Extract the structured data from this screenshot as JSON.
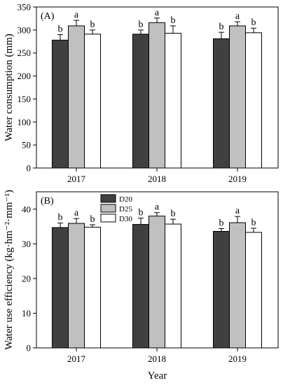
{
  "chart_data": [
    {
      "type": "bar",
      "panel_label": "(A)",
      "categories": [
        "2017",
        "2018",
        "2019"
      ],
      "series": [
        {
          "name": "D20",
          "color": "#404040",
          "values": [
            278,
            291,
            281
          ],
          "errors": [
            12,
            9,
            14
          ],
          "letters": [
            "b",
            "b",
            "b"
          ]
        },
        {
          "name": "D25",
          "color": "#c0c0c0",
          "values": [
            309,
            316,
            309
          ],
          "errors": [
            12,
            10,
            9
          ],
          "letters": [
            "a",
            "a",
            "a"
          ]
        },
        {
          "name": "D30",
          "color": "#ffffff",
          "values": [
            291,
            293,
            294
          ],
          "errors": [
            9,
            16,
            10
          ],
          "letters": [
            "b",
            "b",
            "b"
          ]
        }
      ],
      "xlabel": "",
      "ylabel": "Water consumption (mm)",
      "ylim": [
        0,
        350
      ],
      "yticks": [
        0,
        50,
        100,
        150,
        200,
        250,
        300,
        350
      ],
      "grid": false
    },
    {
      "type": "bar",
      "panel_label": "(B)",
      "categories": [
        "2017",
        "2018",
        "2019"
      ],
      "series": [
        {
          "name": "D20",
          "color": "#404040",
          "values": [
            34.7,
            35.6,
            33.6
          ],
          "errors": [
            1.3,
            1.8,
            0.8
          ],
          "letters": [
            "b",
            "b",
            "b"
          ]
        },
        {
          "name": "D25",
          "color": "#c0c0c0",
          "values": [
            35.9,
            38.0,
            36.1
          ],
          "errors": [
            1.4,
            1.0,
            1.8
          ],
          "letters": [
            "a",
            "a",
            "a"
          ]
        },
        {
          "name": "D30",
          "color": "#ffffff",
          "values": [
            34.8,
            35.7,
            33.3
          ],
          "errors": [
            0.7,
            1.4,
            1.2
          ],
          "letters": [
            "b",
            "b",
            "b"
          ]
        }
      ],
      "xlabel": "Year",
      "ylabel": "Water use efficiency (kg·hm⁻²·mm⁻¹)",
      "ylim": [
        0,
        45
      ],
      "yticks": [
        0,
        10,
        20,
        30,
        40
      ],
      "grid": false,
      "legend": {
        "placement": "top-center",
        "entries": [
          "D20",
          "D25",
          "D30"
        ]
      }
    }
  ]
}
